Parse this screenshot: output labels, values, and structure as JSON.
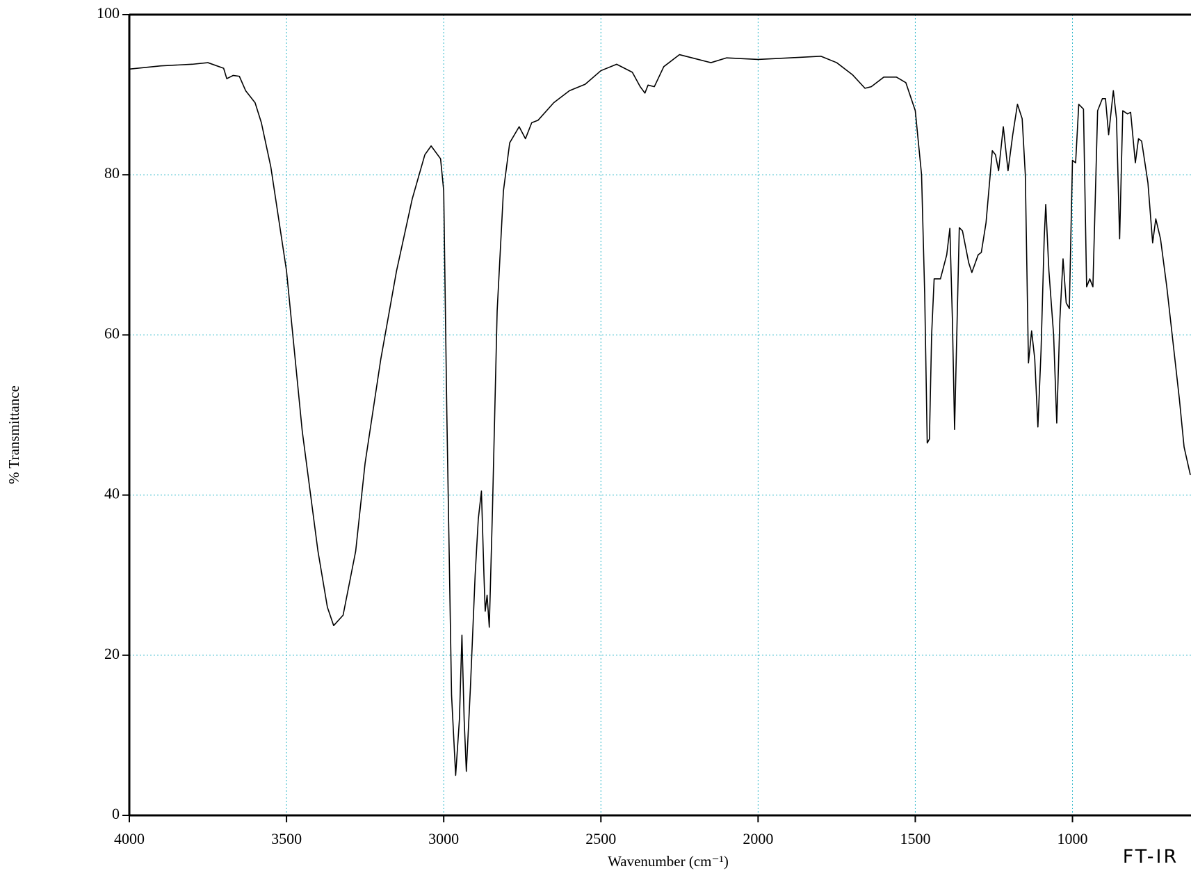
{
  "chart_data": {
    "type": "line",
    "ylabel": "% Transmittance",
    "xlabel": "Wavenumber (cm⁻¹)",
    "annotation": "FT-IR",
    "xlim": [
      4000,
      623
    ],
    "ylim": [
      0,
      100
    ],
    "xticks": [
      4000,
      3500,
      3000,
      2500,
      2000,
      1500,
      1000
    ],
    "yticks": [
      0,
      20,
      40,
      60,
      80,
      100
    ],
    "grid": true,
    "color": "#000000",
    "grid_color": "#29b6c8",
    "x": [
      4000,
      3900,
      3800,
      3750,
      3700,
      3690,
      3670,
      3650,
      3630,
      3600,
      3580,
      3550,
      3500,
      3450,
      3400,
      3370,
      3350,
      3320,
      3280,
      3250,
      3200,
      3150,
      3100,
      3060,
      3040,
      3010,
      3000,
      2990,
      2975,
      2962,
      2950,
      2942,
      2935,
      2928,
      2915,
      2900,
      2890,
      2880,
      2872,
      2868,
      2862,
      2855,
      2845,
      2830,
      2810,
      2790,
      2760,
      2740,
      2720,
      2700,
      2650,
      2600,
      2550,
      2500,
      2450,
      2400,
      2375,
      2360,
      2350,
      2330,
      2300,
      2250,
      2200,
      2150,
      2100,
      2000,
      1900,
      1800,
      1750,
      1700,
      1660,
      1640,
      1600,
      1560,
      1530,
      1500,
      1480,
      1470,
      1462,
      1455,
      1448,
      1440,
      1420,
      1400,
      1390,
      1382,
      1375,
      1368,
      1360,
      1350,
      1330,
      1320,
      1300,
      1290,
      1275,
      1255,
      1245,
      1235,
      1220,
      1205,
      1190,
      1175,
      1160,
      1150,
      1140,
      1130,
      1120,
      1110,
      1100,
      1090,
      1085,
      1075,
      1060,
      1050,
      1040,
      1030,
      1020,
      1010,
      1000,
      990,
      980,
      965,
      955,
      945,
      935,
      920,
      905,
      895,
      885,
      870,
      860,
      850,
      840,
      825,
      815,
      800,
      790,
      780,
      760,
      745,
      735,
      720,
      700,
      680,
      660,
      645,
      625
    ],
    "values": [
      93.2,
      93.6,
      93.8,
      94.0,
      93.3,
      92.0,
      92.4,
      92.3,
      90.5,
      89,
      86.5,
      81,
      68,
      48,
      33,
      26,
      23.7,
      25,
      33,
      44,
      57,
      68,
      77,
      82.5,
      83.6,
      82,
      78,
      50,
      15,
      5,
      12,
      22.5,
      12,
      5.5,
      16,
      30,
      37,
      40.5,
      30,
      25.5,
      27.5,
      23.5,
      38,
      63,
      78,
      84,
      86,
      84.5,
      86.5,
      86.8,
      89,
      90.5,
      91.3,
      93,
      93.8,
      92.8,
      91,
      90.2,
      91.2,
      91,
      93.5,
      95,
      94.5,
      94,
      94.6,
      94.4,
      94.6,
      94.8,
      94,
      92.5,
      90.8,
      91,
      92.2,
      92.2,
      91.5,
      88,
      80,
      65,
      46.5,
      47,
      60,
      67,
      67,
      70,
      73.3,
      62,
      48.2,
      60,
      73.4,
      73,
      69,
      67.8,
      70,
      70.3,
      74,
      83,
      82.5,
      80.5,
      86,
      80.5,
      85,
      88.8,
      87,
      80,
      56.5,
      60.5,
      57,
      48.5,
      58,
      72,
      76.3,
      68,
      60,
      49,
      62,
      69.5,
      64,
      63.3,
      81.8,
      81.5,
      88.8,
      88.2,
      66,
      67,
      66,
      88,
      89.5,
      89.5,
      85,
      90.5,
      87,
      72,
      88,
      87.6,
      87.8,
      81.5,
      84.5,
      84.2,
      79,
      71.5,
      74.5,
      72,
      66,
      59,
      52,
      46,
      42.5
    ]
  }
}
